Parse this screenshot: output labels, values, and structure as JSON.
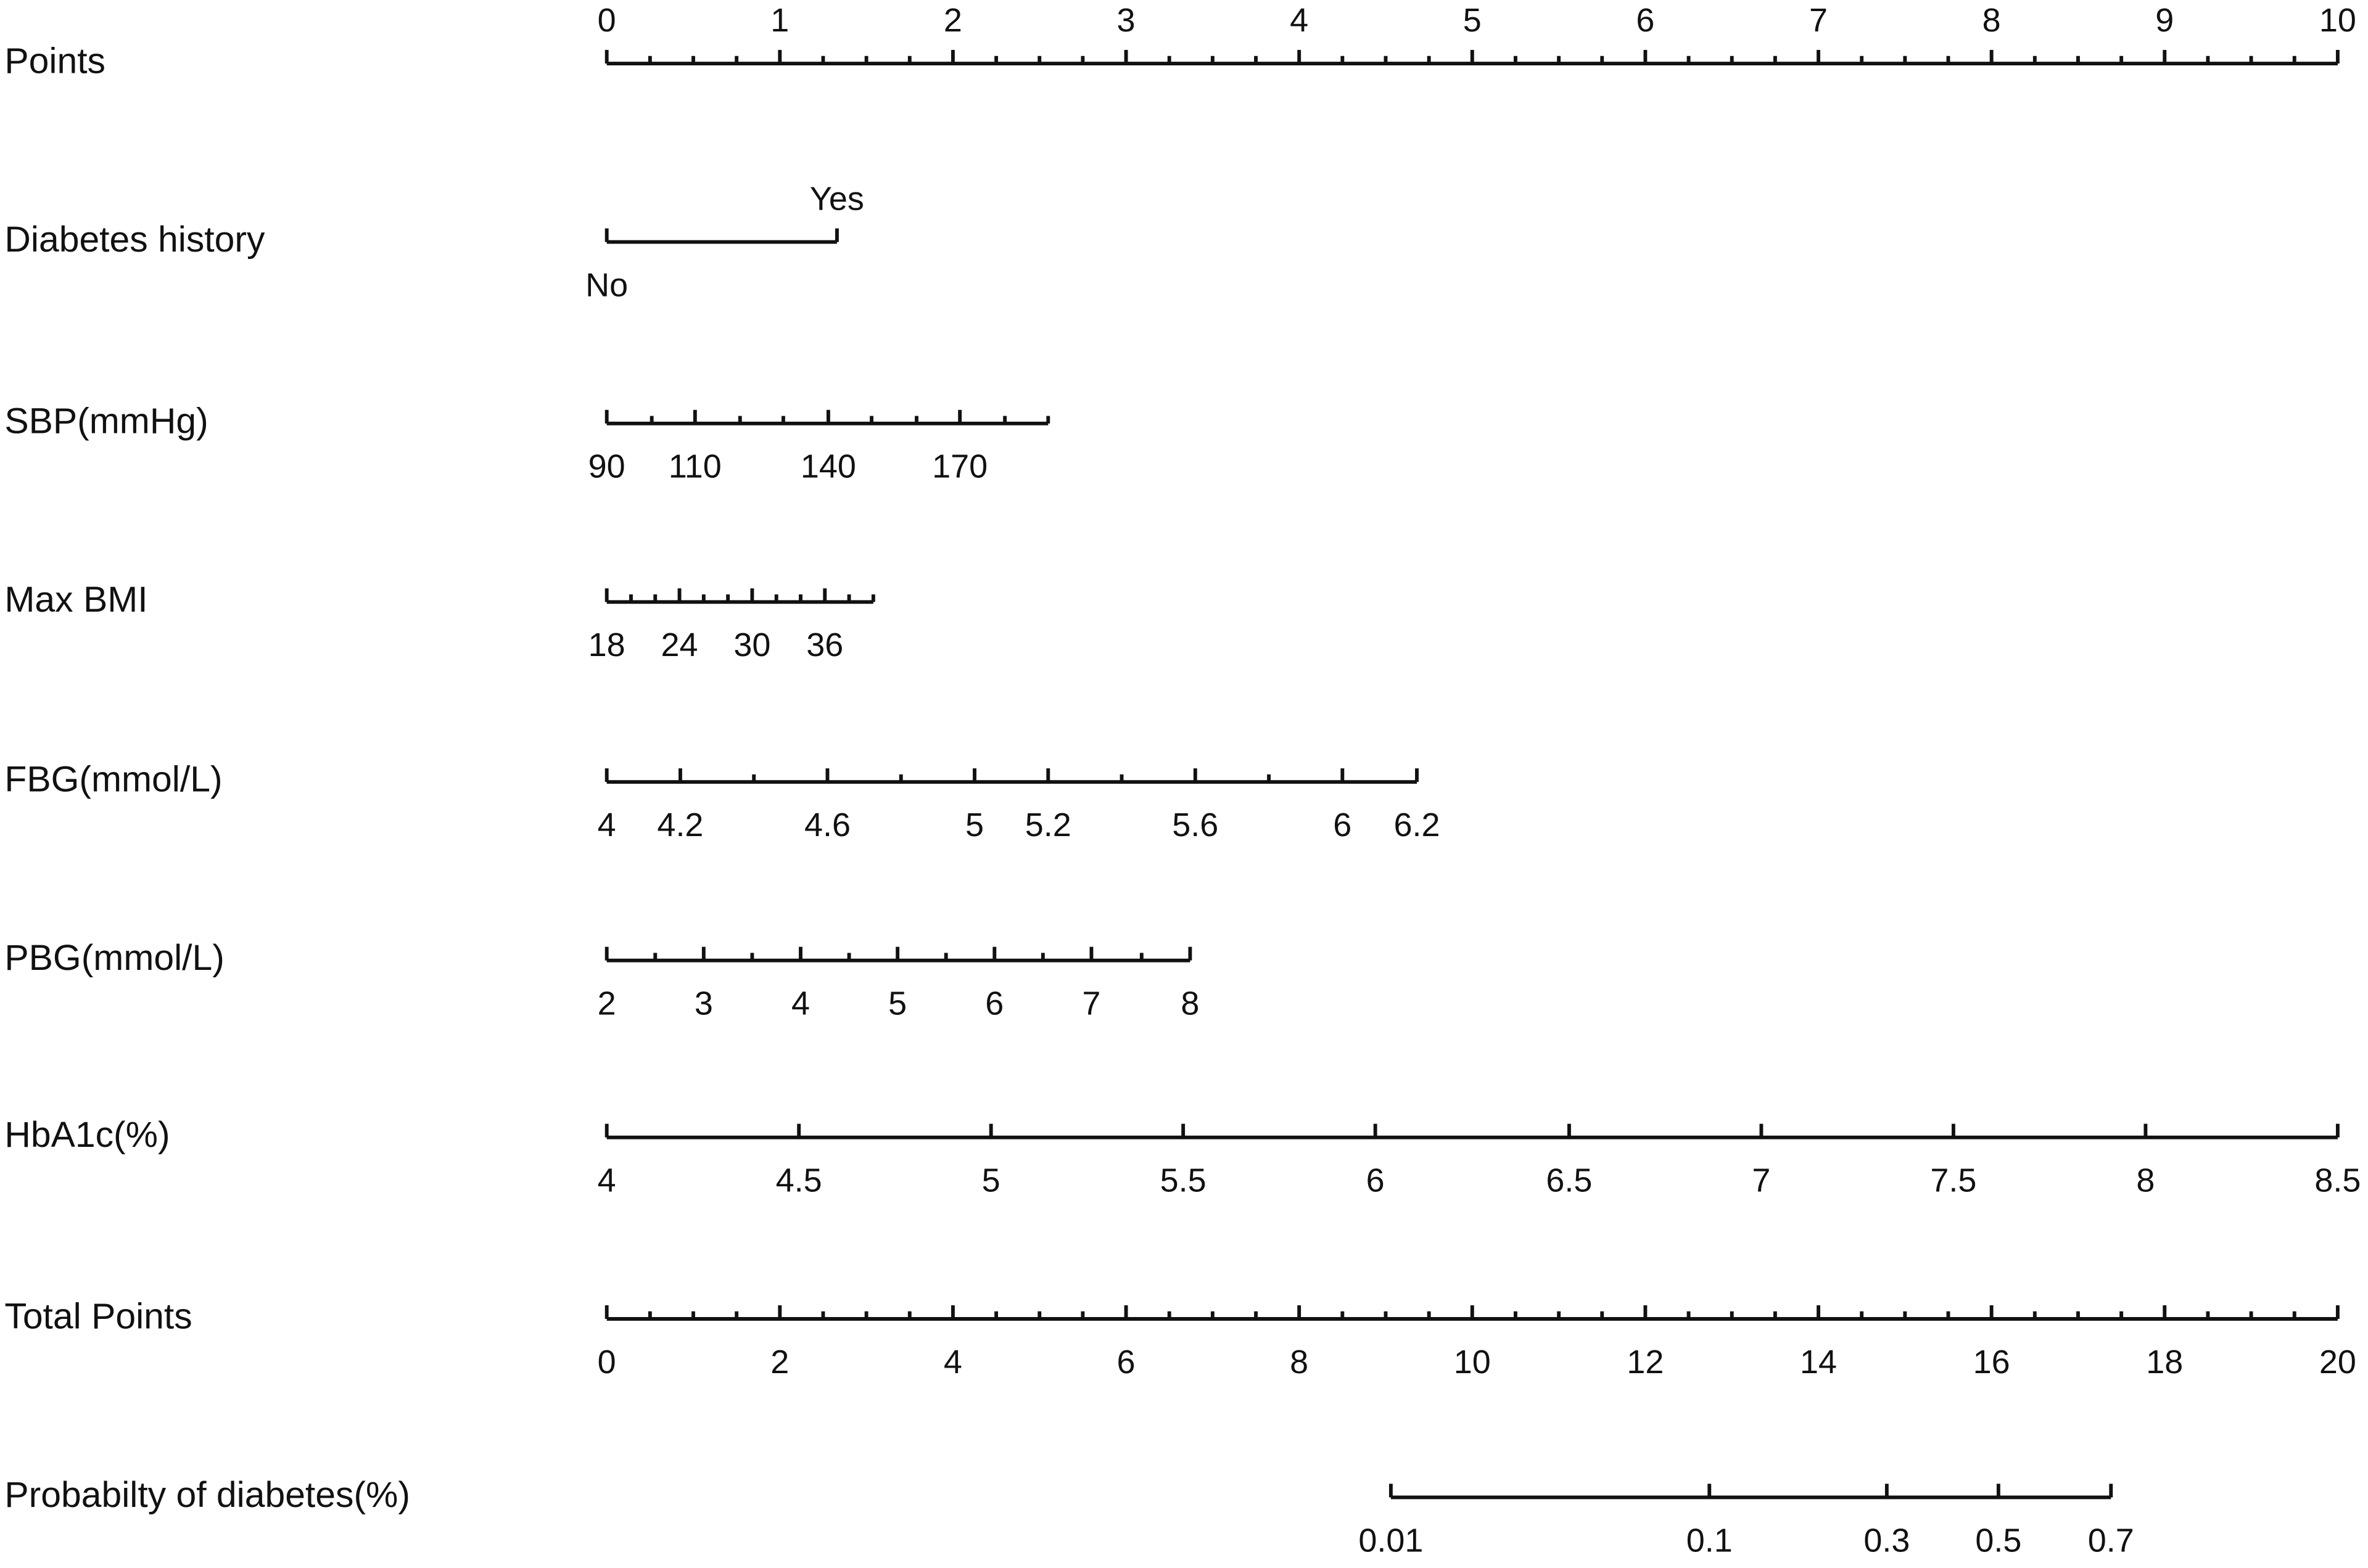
{
  "chart_data": {
    "type": "nomogram",
    "scales": [
      {
        "name": "Points",
        "xlim": [
          0,
          10
        ],
        "label_side": "above",
        "ticks": [
          0,
          1,
          2,
          3,
          4,
          5,
          6,
          7,
          8,
          9,
          10
        ],
        "minor": [
          0.25,
          0.5,
          0.75,
          1.25,
          1.5,
          1.75,
          2.25,
          2.5,
          2.75,
          3.25,
          3.5,
          3.75,
          4.25,
          4.5,
          4.75,
          5.25,
          5.5,
          5.75,
          6.25,
          6.5,
          6.75,
          7.25,
          7.5,
          7.75,
          8.25,
          8.5,
          8.75,
          9.25,
          9.5,
          9.75
        ]
      },
      {
        "name": "Diabetes history",
        "xlim": [
          0,
          10
        ],
        "label_side": [
          "below",
          "above"
        ],
        "ticks": [
          "No",
          "Yes"
        ],
        "positions": [
          0,
          1.33
        ],
        "minor": []
      },
      {
        "name": "SBP(mmHg)",
        "xlim": [
          0,
          10
        ],
        "label_side": "below",
        "ticks": [
          90,
          110,
          140,
          170
        ],
        "positions": [
          0,
          0.51,
          1.28,
          2.04
        ],
        "minor": [
          0.26,
          0.77,
          1.02,
          1.53,
          1.79,
          2.3,
          2.55
        ]
      },
      {
        "name": "Max BMI",
        "xlim": [
          0,
          10
        ],
        "label_side": "below",
        "ticks": [
          18,
          24,
          30,
          36
        ],
        "positions": [
          0,
          0.42,
          0.84,
          1.26
        ],
        "minor": [
          0.14,
          0.28,
          0.56,
          0.7,
          0.98,
          1.12,
          1.4,
          1.54
        ]
      },
      {
        "name": "FBG(mmol/L)",
        "xlim": [
          0,
          10
        ],
        "label_side": "below",
        "ticks": [
          4,
          4.2,
          4.6,
          5,
          5.2,
          5.6,
          6,
          6.2
        ],
        "positions": [
          0,
          0.425,
          1.275,
          2.125,
          2.55,
          3.4,
          4.25,
          4.68
        ],
        "minor": [
          0.85,
          1.7,
          2.975,
          3.825
        ]
      },
      {
        "name": "PBG(mmol/L)",
        "xlim": [
          0,
          10
        ],
        "label_side": "below",
        "ticks": [
          2,
          3,
          4,
          5,
          6,
          7,
          8
        ],
        "positions": [
          0,
          0.56,
          1.12,
          1.68,
          2.24,
          2.8,
          3.37
        ],
        "minor": [
          0.28,
          0.84,
          1.4,
          1.96,
          2.52,
          3.09
        ]
      },
      {
        "name": "HbA1c(%)",
        "xlim": [
          0,
          10
        ],
        "label_side": "below",
        "ticks": [
          4,
          4.5,
          5,
          5.5,
          6,
          6.5,
          7,
          7.5,
          8,
          8.5
        ],
        "positions": [
          0,
          1.11,
          2.22,
          3.33,
          4.44,
          5.56,
          6.67,
          7.78,
          8.89,
          10
        ],
        "minor": []
      },
      {
        "name": "Total Points",
        "xlim": [
          0,
          20
        ],
        "label_side": "below",
        "ticks": [
          0,
          2,
          4,
          6,
          8,
          10,
          12,
          14,
          16,
          18,
          20
        ],
        "minor": [
          0.5,
          1,
          1.5,
          2.5,
          3,
          3.5,
          4.5,
          5,
          5.5,
          6.5,
          7,
          7.5,
          8.5,
          9,
          9.5,
          10.5,
          11,
          11.5,
          12.5,
          13,
          13.5,
          14.5,
          15,
          15.5,
          16.5,
          17,
          17.5,
          18.5,
          19,
          19.5
        ]
      },
      {
        "name": "Probabilty of diabetes(%)",
        "xlim": [
          0,
          20
        ],
        "label_side": "below",
        "ticks": [
          0.01,
          0.1,
          0.3,
          0.5,
          0.7
        ],
        "positions": [
          9.06,
          12.74,
          14.79,
          16.08,
          17.38
        ],
        "minor": []
      }
    ]
  }
}
